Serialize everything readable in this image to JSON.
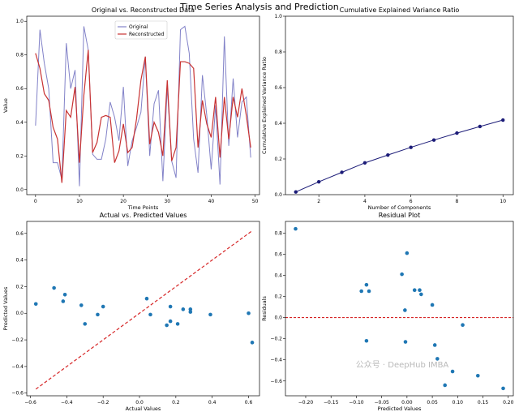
{
  "suptitle": "Time Series Analysis and Prediction",
  "watermark": "公众号 · DeepHub IMBA",
  "chart_data": [
    {
      "type": "line",
      "title": "Original vs. Reconstructed Data",
      "xlabel": "Time Points",
      "ylabel": "Value",
      "xlim": [
        -2,
        51
      ],
      "ylim": [
        -0.03,
        1.03
      ],
      "xticks": [
        0,
        10,
        20,
        30,
        40,
        50
      ],
      "yticks": [
        0.0,
        0.2,
        0.4,
        0.6,
        0.8,
        1.0
      ],
      "legend": "top-center",
      "series": [
        {
          "name": "Original",
          "color": "#8282c8",
          "values": [
            0.38,
            0.95,
            0.75,
            0.6,
            0.16,
            0.16,
            0.06,
            0.87,
            0.6,
            0.71,
            0.02,
            0.97,
            0.83,
            0.21,
            0.18,
            0.18,
            0.3,
            0.52,
            0.43,
            0.29,
            0.61,
            0.14,
            0.29,
            0.37,
            0.46,
            0.79,
            0.2,
            0.51,
            0.59,
            0.05,
            0.61,
            0.17,
            0.07,
            0.95,
            0.97,
            0.81,
            0.3,
            0.1,
            0.68,
            0.44,
            0.12,
            0.5,
            0.03,
            0.91,
            0.26,
            0.66,
            0.31,
            0.52,
            0.55,
            0.19
          ]
        },
        {
          "name": "Reconstructed",
          "color": "#c83232",
          "values": [
            0.81,
            0.72,
            0.57,
            0.53,
            0.37,
            0.3,
            0.04,
            0.47,
            0.43,
            0.61,
            0.16,
            0.56,
            0.83,
            0.22,
            0.28,
            0.43,
            0.44,
            0.43,
            0.16,
            0.23,
            0.39,
            0.22,
            0.25,
            0.42,
            0.65,
            0.79,
            0.27,
            0.4,
            0.34,
            0.2,
            0.65,
            0.17,
            0.25,
            0.76,
            0.76,
            0.75,
            0.72,
            0.25,
            0.53,
            0.39,
            0.31,
            0.55,
            0.19,
            0.55,
            0.3,
            0.55,
            0.43,
            0.6,
            0.44,
            0.25
          ]
        }
      ]
    },
    {
      "type": "line",
      "title": "Cumulative Explained Variance Ratio",
      "xlabel": "Number of Components",
      "ylabel": "Cumulative Explained Variance Ratio",
      "xlim": [
        0.55,
        10.45
      ],
      "ylim": [
        0,
        1.0
      ],
      "xticks": [
        2,
        4,
        6,
        8,
        10
      ],
      "yticks": [
        0.0,
        0.2,
        0.4,
        0.6,
        0.8,
        1.0
      ],
      "x": [
        1,
        2,
        3,
        4,
        5,
        6,
        7,
        8,
        9,
        10
      ],
      "series": [
        {
          "color": "#1c1c78",
          "values": [
            0.015,
            0.072,
            0.125,
            0.178,
            0.222,
            0.265,
            0.306,
            0.345,
            0.382,
            0.418
          ]
        }
      ]
    },
    {
      "type": "scatter",
      "title": "Actual vs. Predicted Values",
      "xlabel": "Actual Values",
      "ylabel": "Predicted Values",
      "xlim": [
        -0.62,
        0.66
      ],
      "ylim": [
        -0.62,
        0.69
      ],
      "xticks": [
        -0.6,
        -0.4,
        -0.2,
        0.0,
        0.2,
        0.4,
        0.6
      ],
      "yticks": [
        -0.6,
        -0.4,
        -0.2,
        0.0,
        0.2,
        0.4,
        0.6
      ],
      "color": "#1f77b4",
      "reference_line": {
        "x": [
          -0.57,
          0.62
        ],
        "y": [
          -0.57,
          0.62
        ],
        "color": "#d62728",
        "style": "dashed"
      },
      "points": [
        [
          -0.57,
          0.07
        ],
        [
          -0.47,
          0.19
        ],
        [
          -0.41,
          0.14
        ],
        [
          -0.42,
          0.09
        ],
        [
          -0.32,
          0.06
        ],
        [
          -0.3,
          -0.08
        ],
        [
          -0.23,
          -0.01
        ],
        [
          -0.2,
          0.05
        ],
        [
          0.04,
          0.11
        ],
        [
          0.06,
          -0.01
        ],
        [
          0.15,
          -0.09
        ],
        [
          0.17,
          0.05
        ],
        [
          0.17,
          -0.06
        ],
        [
          0.21,
          -0.08
        ],
        [
          0.24,
          0.03
        ],
        [
          0.28,
          0.03
        ],
        [
          0.28,
          0.01
        ],
        [
          0.39,
          -0.01
        ],
        [
          0.6,
          0.0
        ],
        [
          0.62,
          -0.22
        ]
      ]
    },
    {
      "type": "scatter",
      "title": "Residual Plot",
      "xlabel": "Predicted Values",
      "ylabel": "Residuals",
      "xlim": [
        -0.24,
        0.21
      ],
      "ylim": [
        -0.74,
        0.91
      ],
      "xticks": [
        -0.2,
        -0.15,
        -0.1,
        -0.05,
        0.0,
        0.05,
        0.1,
        0.15,
        0.2
      ],
      "yticks": [
        -0.6,
        -0.4,
        -0.2,
        0.0,
        0.2,
        0.4,
        0.6,
        0.8
      ],
      "color": "#1f77b4",
      "reference_line": {
        "y": 0.0,
        "color": "#d62728",
        "style": "dashed"
      },
      "points": [
        [
          -0.22,
          0.84
        ],
        [
          -0.09,
          0.25
        ],
        [
          -0.08,
          0.31
        ],
        [
          -0.075,
          0.25
        ],
        [
          -0.08,
          -0.22
        ],
        [
          -0.01,
          0.41
        ],
        [
          0.0,
          0.61
        ],
        [
          0.015,
          0.26
        ],
        [
          0.025,
          0.26
        ],
        [
          0.028,
          0.22
        ],
        [
          -0.004,
          0.07
        ],
        [
          -0.003,
          -0.23
        ],
        [
          0.05,
          0.12
        ],
        [
          0.055,
          -0.26
        ],
        [
          0.06,
          -0.39
        ],
        [
          0.075,
          -0.64
        ],
        [
          0.09,
          -0.51
        ],
        [
          0.11,
          -0.07
        ],
        [
          0.14,
          -0.55
        ],
        [
          0.19,
          -0.67
        ]
      ]
    }
  ]
}
